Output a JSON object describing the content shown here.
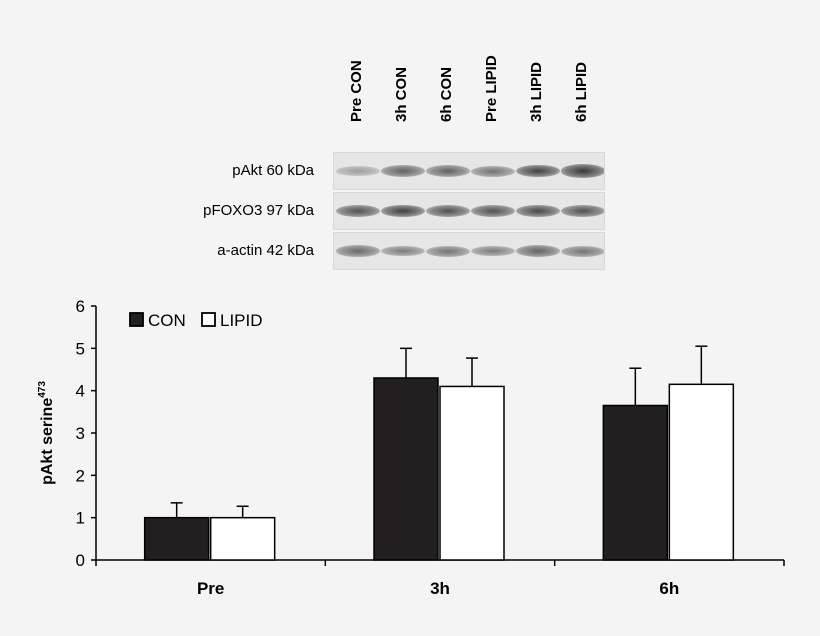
{
  "blot": {
    "lanes": [
      "Pre CON",
      "3h CON",
      "6h CON",
      "Pre LIPID",
      "3h LIPID",
      "6h LIPID"
    ],
    "rows": [
      {
        "label": "pAkt 60 kDa",
        "intensity": [
          0.25,
          0.6,
          0.6,
          0.5,
          0.8,
          0.85
        ]
      },
      {
        "label": "pFOXO3 97 kDa",
        "intensity": [
          0.7,
          0.8,
          0.7,
          0.7,
          0.75,
          0.7
        ]
      },
      {
        "label": "a-actin 42 kDa",
        "intensity": [
          0.55,
          0.45,
          0.5,
          0.45,
          0.6,
          0.5
        ]
      }
    ]
  },
  "chart_data": {
    "type": "bar",
    "categories": [
      "Pre",
      "3h",
      "6h"
    ],
    "series": [
      {
        "name": "CON",
        "values": [
          1.0,
          4.3,
          3.65
        ],
        "errors": [
          0.35,
          0.7,
          0.88
        ],
        "color": "#231f20"
      },
      {
        "name": "LIPID",
        "values": [
          1.0,
          4.1,
          4.15
        ],
        "errors": [
          0.27,
          0.67,
          0.9
        ],
        "color": "#ffffff"
      }
    ],
    "ylabel": "pAkt serine",
    "ylabel_superscript": "473",
    "ylim": [
      0,
      6
    ],
    "yticks": [
      0,
      1,
      2,
      3,
      4,
      5,
      6
    ],
    "legend_position": "top-left",
    "grid": false
  }
}
